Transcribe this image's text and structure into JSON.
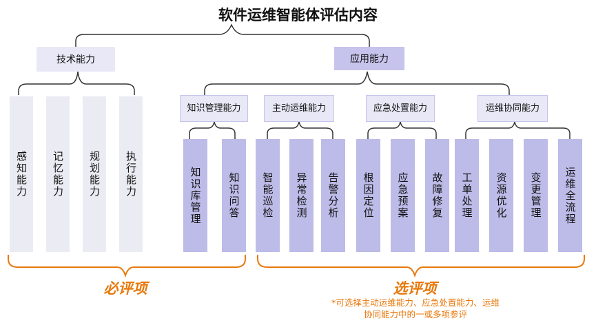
{
  "title": "软件运维智能体评估内容",
  "tech": {
    "label": "技术能力",
    "items": [
      "感知能力",
      "记忆能力",
      "规划能力",
      "执行能力"
    ]
  },
  "app": {
    "label": "应用能力",
    "groups": [
      {
        "label": "知识管理能力",
        "items": [
          [
            "知识库管理"
          ],
          [
            "知识问答"
          ]
        ]
      },
      {
        "label": "主动运维能力",
        "items": [
          [
            "智能巡检"
          ],
          [
            "异常检测"
          ],
          [
            "告警分析"
          ]
        ]
      },
      {
        "label": "应急处置能力",
        "items": [
          [
            "根因定位"
          ],
          [
            "应急预案"
          ],
          [
            "故障修复"
          ]
        ]
      },
      {
        "label": "运维协同能力",
        "items": [
          [
            "工单处理"
          ],
          [
            "资源优化"
          ],
          [
            "变更管理"
          ],
          [
            "运维全流程"
          ]
        ]
      }
    ]
  },
  "required_label": "必评项",
  "optional_label": "选评项",
  "optional_note": "*可选择主动运维能力、应急处置能力、运维协同能力中的一或多项参评",
  "colors": {
    "accent": "#e8780a",
    "box_dark": "#c6c4ec",
    "box_light": "#e8e8f6",
    "bracket": "#333333"
  }
}
